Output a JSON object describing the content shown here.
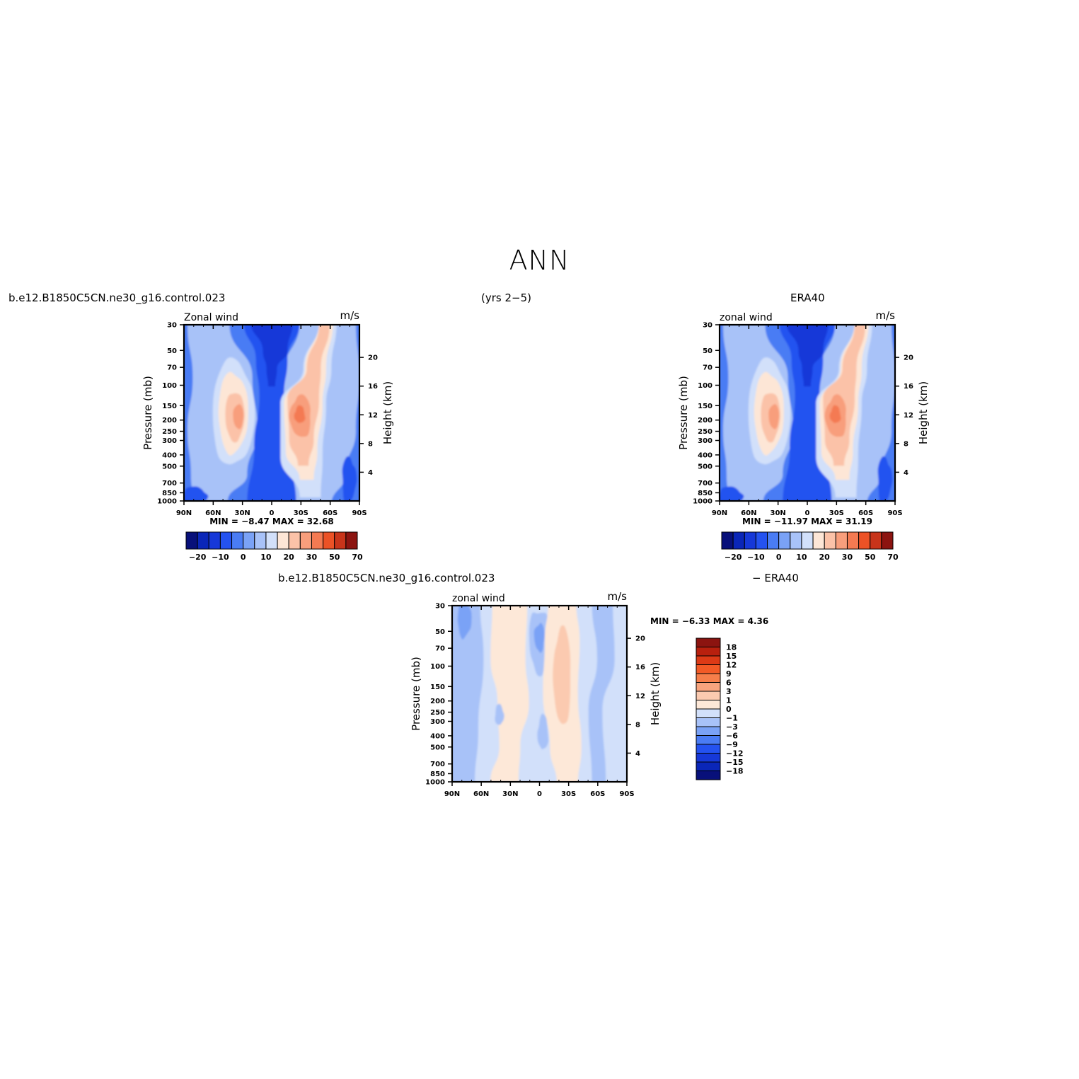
{
  "page": {
    "title": "ANN",
    "left_label": "b.e12.B1850C5CN.ne30_g16.control.023",
    "center_label": "(yrs 2−5)",
    "right_label": "ERA40",
    "diff_left_label": "b.e12.B1850C5CN.ne30_g16.control.023",
    "diff_right_label": "− ERA40"
  },
  "chart_data": [
    {
      "type": "heatmap",
      "id": "model",
      "left_string": "Zonal wind",
      "right_string": "m/s",
      "ylabel": "Pressure (mb)",
      "ylabel_right": "Height (km)",
      "x_ticks": [
        "90N",
        "60N",
        "30N",
        "0",
        "30S",
        "60S",
        "90S"
      ],
      "x_values": [
        90,
        60,
        30,
        0,
        -30,
        -60,
        -90
      ],
      "y_ticks": [
        "30",
        "50",
        "70",
        "100",
        "150",
        "200",
        "250",
        "300",
        "400",
        "500",
        "700",
        "850",
        "1000"
      ],
      "y_values": [
        30,
        50,
        70,
        100,
        150,
        200,
        250,
        300,
        400,
        500,
        700,
        850,
        1000
      ],
      "y_right_ticks": [
        "20",
        "16",
        "12",
        "8",
        "4"
      ],
      "y_right_values": [
        20,
        16,
        12,
        8,
        4
      ],
      "ylim": [
        1000,
        30
      ],
      "log_y": true,
      "min_max": "MIN =   −8.47   MAX =   32.68",
      "colorbar_labels": [
        "−20",
        "−10",
        "0",
        "10",
        "20",
        "30",
        "50",
        "70"
      ],
      "colorbar_orientation": "horizontal"
    },
    {
      "type": "heatmap",
      "id": "obs",
      "left_string": "zonal wind",
      "right_string": "m/s",
      "ylabel": "Pressure (mb)",
      "ylabel_right": "Height (km)",
      "x_ticks": [
        "90N",
        "60N",
        "30N",
        "0",
        "30S",
        "60S",
        "90S"
      ],
      "x_values": [
        90,
        60,
        30,
        0,
        -30,
        -60,
        -90
      ],
      "y_ticks": [
        "30",
        "50",
        "70",
        "100",
        "150",
        "200",
        "250",
        "300",
        "400",
        "500",
        "700",
        "850",
        "1000"
      ],
      "y_values": [
        30,
        50,
        70,
        100,
        150,
        200,
        250,
        300,
        400,
        500,
        700,
        850,
        1000
      ],
      "y_right_ticks": [
        "20",
        "16",
        "12",
        "8",
        "4"
      ],
      "y_right_values": [
        20,
        16,
        12,
        8,
        4
      ],
      "ylim": [
        1000,
        30
      ],
      "log_y": true,
      "min_max": "MIN =  −11.97   MAX =   31.19",
      "colorbar_labels": [
        "−20",
        "−10",
        "0",
        "10",
        "20",
        "30",
        "50",
        "70"
      ],
      "colorbar_orientation": "horizontal"
    },
    {
      "type": "heatmap",
      "id": "diff",
      "left_string": "zonal wind",
      "right_string": "m/s",
      "ylabel": "Pressure (mb)",
      "ylabel_right": "Height (km)",
      "x_ticks": [
        "90N",
        "60N",
        "30N",
        "0",
        "30S",
        "60S",
        "90S"
      ],
      "x_values": [
        90,
        60,
        30,
        0,
        -30,
        -60,
        -90
      ],
      "y_ticks": [
        "30",
        "50",
        "70",
        "100",
        "150",
        "200",
        "250",
        "300",
        "400",
        "500",
        "700",
        "850",
        "1000"
      ],
      "y_values": [
        30,
        50,
        70,
        100,
        150,
        200,
        250,
        300,
        400,
        500,
        700,
        850,
        1000
      ],
      "y_right_ticks": [
        "20",
        "16",
        "12",
        "8",
        "4"
      ],
      "y_right_values": [
        20,
        16,
        12,
        8,
        4
      ],
      "ylim": [
        1000,
        30
      ],
      "log_y": true,
      "min_max": "MIN =   −6.33   MAX =    4.36",
      "colorbar_labels": [
        "18",
        "15",
        "12",
        "9",
        "6",
        "3",
        "1",
        "0",
        "−1",
        "−3",
        "−6",
        "−9",
        "−12",
        "−15",
        "−18"
      ],
      "colorbar_orientation": "vertical"
    }
  ],
  "colors": {
    "full_levels": [
      "#08107a",
      "#0a26b8",
      "#1638d8",
      "#2452f0",
      "#4a7cf4",
      "#7aa2f6",
      "#a8c2f8",
      "#d2e0fa",
      "#fde6d6",
      "#fbc2a8",
      "#f89e7c",
      "#f47a52",
      "#ec5226",
      "#c8341a",
      "#8c1410"
    ],
    "diff_levels": [
      "#8c1410",
      "#b8200e",
      "#dc3a16",
      "#f25a26",
      "#f67e4a",
      "#f8a47e",
      "#fbcab0",
      "#fde8d8",
      "#d2e0fa",
      "#a8c2f8",
      "#7aa2f6",
      "#4a7cf4",
      "#2452f0",
      "#1638d8",
      "#0a26b8",
      "#08107a"
    ]
  }
}
